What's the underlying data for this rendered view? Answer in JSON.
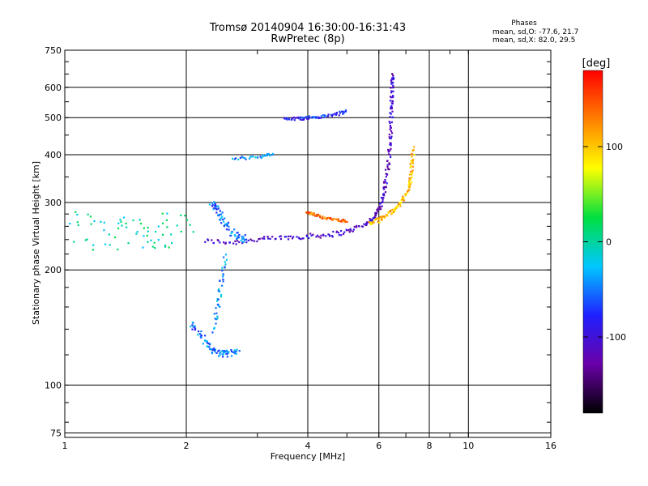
{
  "chart_data": {
    "type": "scatter",
    "title": "Tromsø 20140904 16:30:00-16:31:43",
    "subtitle": "RwPretec (8p)",
    "xlabel": "Frequency [MHz]",
    "ylabel": "Stationary phase Virtual Height [km]",
    "x_scale": "log",
    "y_scale": "log",
    "xlim": [
      1,
      16
    ],
    "ylim": [
      73,
      750
    ],
    "x_ticks": [
      "1",
      "2",
      "4",
      "6",
      "8",
      "10",
      "16"
    ],
    "y_ticks": [
      "75",
      "100",
      "200",
      "300",
      "400",
      "500",
      "600",
      "750"
    ],
    "grid": true,
    "phase_stats": {
      "heading": "Phases",
      "line_o": "mean, sd,O: -77.6, 21.7",
      "line_x": "mean, sd,X:  82.0, 29.5"
    },
    "colorbar": {
      "label": "[deg]",
      "range": [
        -180,
        180
      ],
      "ticks": [
        "100",
        "0",
        "-100"
      ],
      "colors": [
        "#000000",
        "#6a00a8",
        "#2020ff",
        "#00c8ff",
        "#00e040",
        "#ffff00",
        "#ff8000",
        "#ff0000"
      ]
    },
    "series": [
      {
        "traces": [
          {
            "x": [
              2.22,
              2.6,
              3.0,
              3.5,
              4.0,
              4.5,
              5.0,
              5.5,
              5.8,
              6.0,
              6.15,
              6.25,
              6.35,
              6.4,
              6.43,
              6.45,
              6.47,
              6.5
            ],
            "y": [
              238,
              236,
              240,
              243,
              245,
              247,
              252,
              262,
              272,
              288,
              310,
              345,
              390,
              440,
              500,
              560,
              610,
              650
            ],
            "phase": -110,
            "spread": 0.03
          },
          {
            "x": [
              3.5,
              3.8,
              4.0,
              4.3,
              4.7,
              5.0
            ],
            "y": [
              497,
              497,
              500,
              502,
              510,
              520
            ],
            "phase": -75,
            "spread": 0.02
          },
          {
            "x": [
              2.6,
              3.0,
              3.3
            ],
            "y": [
              390,
              395,
              400
            ],
            "phase": -40,
            "spread": 0.02
          },
          {
            "x": [
              2.3,
              2.38,
              2.45,
              2.55,
              2.7,
              2.8
            ],
            "y": [
              300,
              290,
              270,
              255,
              245,
              240
            ],
            "phase": -50,
            "spread": 0.05
          },
          {
            "x": [
              2.05,
              2.15,
              2.25,
              2.35,
              2.45,
              2.55,
              2.7
            ],
            "y": [
              145,
              138,
              128,
              122,
              121,
              121,
              122
            ],
            "phase": -50,
            "spread": 0.04
          },
          {
            "x": [
              2.35,
              2.4,
              2.45,
              2.5
            ],
            "y": [
              140,
              165,
              190,
              220
            ],
            "phase": -40,
            "spread": 0.04
          },
          {
            "x": [
              3.95,
              4.2,
              4.5,
              4.8,
              5.0
            ],
            "y": [
              283,
              278,
              272,
              270,
              268
            ],
            "phase": 140,
            "spread": 0.015
          },
          {
            "x": [
              5.7,
              6.0,
              6.3,
              6.6,
              6.9,
              7.1,
              7.2,
              7.25,
              7.3
            ],
            "y": [
              265,
              270,
              280,
              290,
              305,
              325,
              350,
              380,
              420
            ],
            "phase": 105,
            "spread": 0.03
          },
          {
            "x": [
              1.0,
              1.2,
              1.4,
              1.6,
              1.8,
              2.0
            ],
            "y": [
              255,
              250,
              245,
              250,
              255,
              250
            ],
            "phase": 0,
            "spread": 0.22
          }
        ]
      }
    ]
  }
}
